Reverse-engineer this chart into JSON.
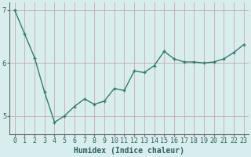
{
  "x": [
    0,
    1,
    2,
    3,
    4,
    5,
    6,
    7,
    8,
    9,
    10,
    11,
    12,
    13,
    14,
    15,
    16,
    17,
    18,
    19,
    20,
    21,
    22,
    23
  ],
  "y": [
    7.0,
    6.55,
    6.1,
    5.45,
    4.88,
    5.0,
    5.18,
    5.32,
    5.22,
    5.28,
    5.52,
    5.48,
    5.85,
    5.82,
    5.95,
    6.22,
    6.08,
    6.02,
    6.02,
    6.0,
    6.02,
    6.08,
    6.2,
    6.35
  ],
  "line_color": "#2e7d6e",
  "marker": "+",
  "marker_size": 3,
  "xlabel": "Humidex (Indice chaleur)",
  "ylim": [
    4.65,
    7.15
  ],
  "xlim": [
    -0.5,
    23.5
  ],
  "yticks": [
    5,
    6,
    7
  ],
  "xtick_labels": [
    "0",
    "1",
    "2",
    "3",
    "4",
    "5",
    "6",
    "7",
    "8",
    "9",
    "10",
    "11",
    "12",
    "13",
    "14",
    "15",
    "16",
    "17",
    "18",
    "19",
    "20",
    "21",
    "22",
    "23"
  ],
  "bg_color": "#d8eeee",
  "grid_color": "#c8aaaa",
  "axis_color": "#666666",
  "xlabel_fontsize": 7,
  "tick_fontsize": 6,
  "line_width": 1.0
}
